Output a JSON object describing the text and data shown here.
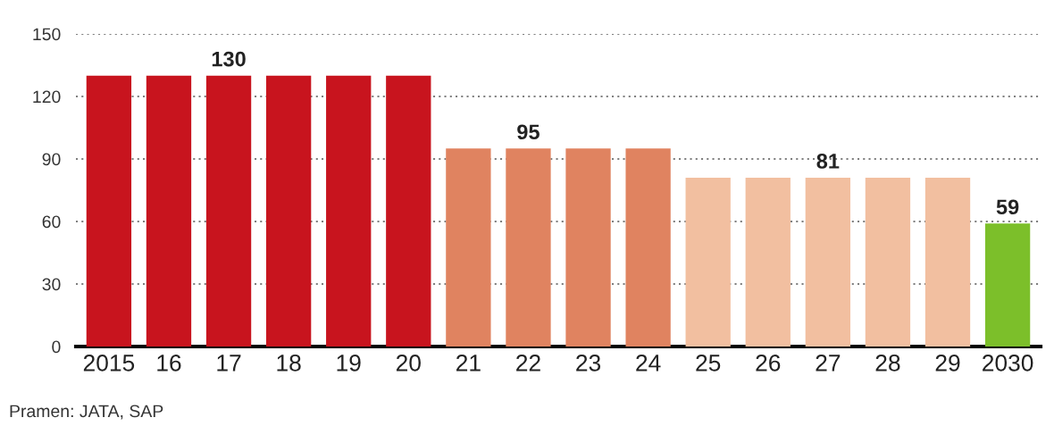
{
  "chart_data": {
    "type": "bar",
    "categories": [
      "2015",
      "16",
      "17",
      "18",
      "19",
      "20",
      "21",
      "22",
      "23",
      "24",
      "25",
      "26",
      "27",
      "28",
      "29",
      "2030"
    ],
    "values": [
      130,
      130,
      130,
      130,
      130,
      130,
      95,
      95,
      95,
      95,
      81,
      81,
      81,
      81,
      81,
      59
    ],
    "colors": [
      "#c8141e",
      "#c8141e",
      "#c8141e",
      "#c8141e",
      "#c8141e",
      "#c8141e",
      "#e08360",
      "#e08360",
      "#e08360",
      "#e08360",
      "#f2bfa0",
      "#f2bfa0",
      "#f2bfa0",
      "#f2bfa0",
      "#f2bfa0",
      "#7cbf2a"
    ],
    "value_labels": [
      null,
      null,
      "130",
      null,
      null,
      null,
      null,
      "95",
      null,
      null,
      null,
      null,
      "81",
      null,
      null,
      "59"
    ],
    "ylim": [
      0,
      150
    ],
    "yticks": [
      0,
      30,
      60,
      90,
      120,
      150
    ],
    "grid": "y",
    "annotations": [
      "Pramen: JATA, SAP"
    ]
  }
}
